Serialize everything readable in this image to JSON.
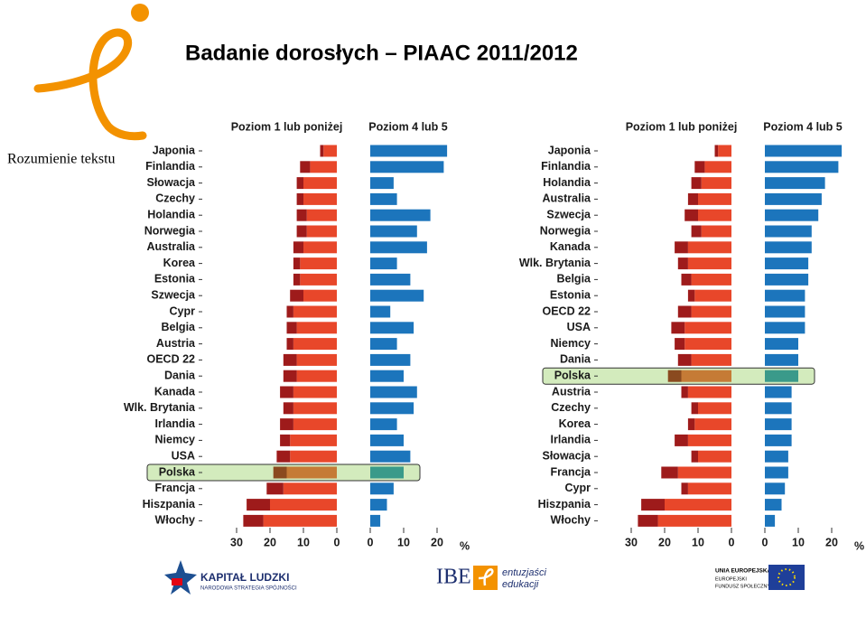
{
  "header": {
    "title": "Badanie dorosłych – PIAAC 2011/2012",
    "side_label": "Rozumienie tekstu"
  },
  "footer": {
    "kl_title": "KAPITAŁ LUDZKI",
    "kl_sub": "NARODOWA STRATEGIA SPÓJNOŚCI",
    "ibe": "IBE",
    "ibe_line1": "entuzjaści",
    "ibe_line2": "edukacji",
    "eu_1": "UNIA EUROPEJSKA",
    "eu_2": "EUROPEJSKI",
    "eu_3": "FUNDUSZ SPOŁECZNY"
  },
  "chart_data": [
    {
      "type": "bar",
      "left_title": "Poziom 1 lub poniżej",
      "right_title": "Poziom 4 lub 5",
      "unit": "%",
      "left_xlim": [
        0,
        30
      ],
      "left_xticks": [
        30,
        20,
        10,
        0
      ],
      "right_xlim": [
        0,
        25
      ],
      "right_xticks": [
        0,
        10,
        20
      ],
      "highlight": "Polska",
      "categories": [
        "Japonia",
        "Finlandia",
        "Słowacja",
        "Czechy",
        "Holandia",
        "Norwegia",
        "Australia",
        "Korea",
        "Estonia",
        "Szwecja",
        "Cypr",
        "Belgia",
        "Austria",
        "OECD 22",
        "Dania",
        "Kanada",
        "Wlk. Brytania",
        "Irlandia",
        "Niemcy",
        "USA",
        "Polska",
        "Francja",
        "Hiszpania",
        "Włochy"
      ],
      "series": [
        {
          "side": "left",
          "color": "#9e1b1b",
          "highlight_color": "#8a4a1f",
          "values": [
            1,
            3,
            2,
            2,
            3,
            3,
            3,
            2,
            2,
            4,
            2,
            3,
            2,
            4,
            4,
            4,
            3,
            4,
            3,
            4,
            4,
            5,
            7,
            6
          ]
        },
        {
          "side": "left",
          "color": "#e8472a",
          "highlight_color": "#c57b36",
          "values": [
            4,
            8,
            10,
            10,
            9,
            9,
            10,
            11,
            11,
            10,
            13,
            12,
            13,
            12,
            12,
            13,
            13,
            13,
            14,
            14,
            15,
            16,
            20,
            22
          ]
        },
        {
          "side": "right",
          "color": "#1c75bc",
          "highlight_color": "#3a9a8a",
          "values": [
            23,
            22,
            7,
            8,
            18,
            14,
            17,
            8,
            12,
            16,
            6,
            13,
            8,
            12,
            10,
            14,
            13,
            8,
            10,
            12,
            10,
            7,
            5,
            3
          ]
        }
      ]
    },
    {
      "type": "bar",
      "left_title": "Poziom 1 lub poniżej",
      "right_title": "Poziom 4 lub 5",
      "unit": "%",
      "left_xlim": [
        0,
        30
      ],
      "left_xticks": [
        30,
        20,
        10,
        0
      ],
      "right_xlim": [
        0,
        25
      ],
      "right_xticks": [
        0,
        10,
        20
      ],
      "highlight": "Polska",
      "categories": [
        "Japonia",
        "Finlandia",
        "Holandia",
        "Australia",
        "Szwecja",
        "Norwegia",
        "Kanada",
        "Wlk. Brytania",
        "Belgia",
        "Estonia",
        "OECD 22",
        "USA",
        "Niemcy",
        "Dania",
        "Polska",
        "Austria",
        "Czechy",
        "Korea",
        "Irlandia",
        "Słowacja",
        "Francja",
        "Cypr",
        "Hiszpania",
        "Włochy"
      ],
      "series": [
        {
          "side": "left",
          "color": "#9e1b1b",
          "highlight_color": "#8a4a1f",
          "values": [
            1,
            3,
            3,
            3,
            4,
            3,
            4,
            3,
            3,
            2,
            4,
            4,
            3,
            4,
            4,
            2,
            2,
            2,
            4,
            2,
            5,
            2,
            7,
            6
          ]
        },
        {
          "side": "left",
          "color": "#e8472a",
          "highlight_color": "#c57b36",
          "values": [
            4,
            8,
            9,
            10,
            10,
            9,
            13,
            13,
            12,
            11,
            12,
            14,
            14,
            12,
            15,
            13,
            10,
            11,
            13,
            10,
            16,
            13,
            20,
            22
          ]
        },
        {
          "side": "right",
          "color": "#1c75bc",
          "highlight_color": "#3a9a8a",
          "values": [
            23,
            22,
            18,
            17,
            16,
            14,
            14,
            13,
            13,
            12,
            12,
            12,
            10,
            10,
            10,
            8,
            8,
            8,
            8,
            7,
            7,
            6,
            5,
            3
          ]
        }
      ]
    }
  ]
}
